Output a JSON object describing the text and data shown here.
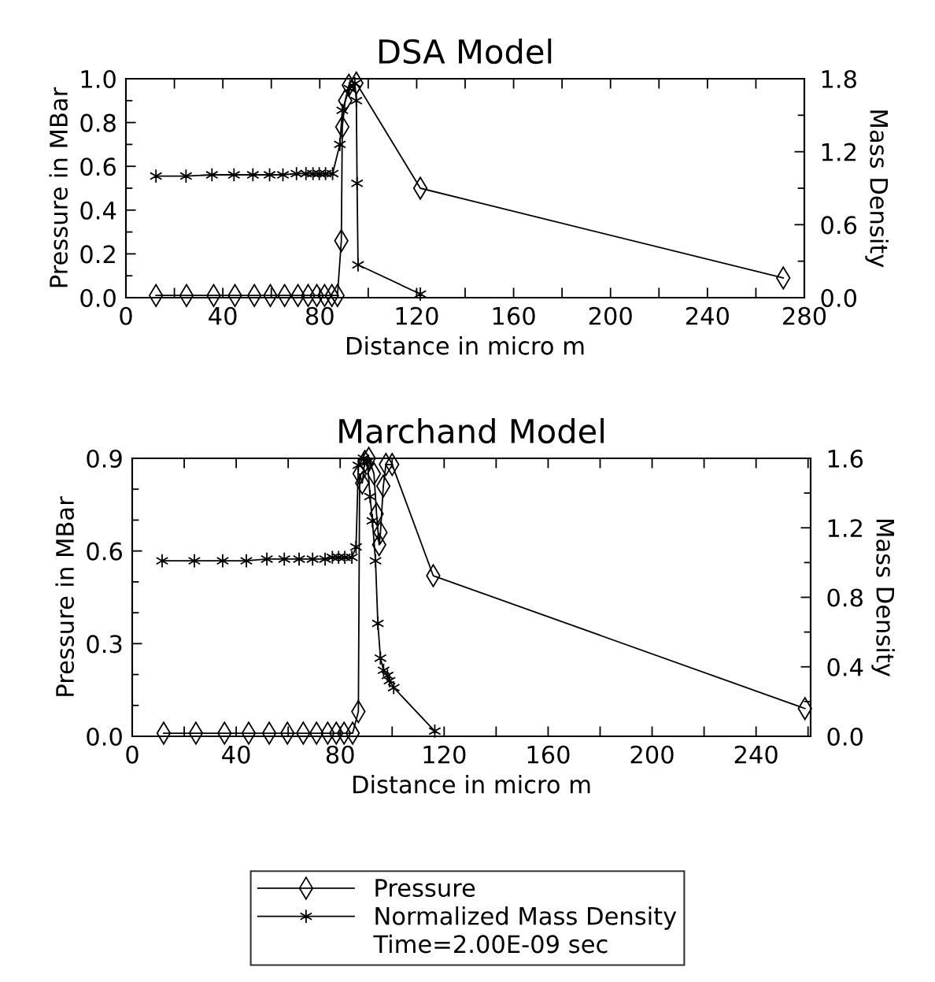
{
  "chart_data": [
    {
      "type": "line",
      "title": "DSA Model",
      "xlabel": "Distance in micro m",
      "ylabel": "Pressure in MBar",
      "y2label": "Mass Density",
      "xlim": [
        0,
        280
      ],
      "xticks": [
        0,
        {
          "value": 20,
          "label": null
        },
        40,
        {
          "value": 60,
          "label": null
        },
        80,
        {
          "value": 100,
          "label": null
        },
        120,
        {
          "value": 140,
          "label": null
        },
        160,
        {
          "value": 180,
          "label": null
        },
        200,
        {
          "value": 220,
          "label": null
        },
        240,
        {
          "value": 260,
          "label": null
        },
        280
      ],
      "ylim": [
        0,
        1.0
      ],
      "yticks": [
        {
          "value": 0,
          "label": "0.0"
        },
        {
          "value": 0.1,
          "label": null
        },
        {
          "value": 0.2,
          "label": "0.2"
        },
        {
          "value": 0.3,
          "label": null
        },
        {
          "value": 0.4,
          "label": "0.4"
        },
        {
          "value": 0.5,
          "label": null
        },
        {
          "value": 0.6,
          "label": "0.6"
        },
        {
          "value": 0.7,
          "label": null
        },
        {
          "value": 0.8,
          "label": "0.8"
        },
        {
          "value": 0.9,
          "label": null
        },
        {
          "value": 1.0,
          "label": "1.0"
        }
      ],
      "y2lim": [
        0,
        1.8
      ],
      "y2ticks": [
        {
          "value": 0,
          "label": "0.0"
        },
        {
          "value": 0.3,
          "label": null
        },
        {
          "value": 0.6,
          "label": "0.6"
        },
        {
          "value": 0.9,
          "label": null
        },
        {
          "value": 1.2,
          "label": "1.2"
        },
        {
          "value": 1.5,
          "label": null
        },
        {
          "value": 1.8,
          "label": "1.8"
        }
      ],
      "grid": false,
      "legend": "bottom",
      "line_style": "solid",
      "series": [
        {
          "name": "Pressure",
          "color": "#000000",
          "marker": "diamond",
          "x": [
            12.4,
            25,
            36.2,
            45,
            53,
            59.6,
            65.5,
            71,
            75.2,
            78.8,
            82,
            85,
            87.3,
            88.9,
            89.3,
            90.5,
            92,
            95.1,
            121.5,
            271.3
          ],
          "values": [
            0.01,
            0.01,
            0.01,
            0.01,
            0.01,
            0.01,
            0.01,
            0.01,
            0.01,
            0.01,
            0.01,
            0.01,
            0.01,
            0.26,
            0.78,
            0.9,
            0.97,
            0.98,
            0.5,
            0.09
          ]
        },
        {
          "name": "Normalized Mass Density",
          "color": "#000000",
          "marker": "cross",
          "axis": "y2",
          "x": [
            12.4,
            24.8,
            35.5,
            44.6,
            52.4,
            59.3,
            64.8,
            70.4,
            74.3,
            77.2,
            79.8,
            82.4,
            85.3,
            88.3,
            89.3,
            92.2,
            94.5,
            95.1,
            95.4,
            95.8,
            121.5
          ],
          "values": [
            1.0,
            1.0,
            1.01,
            1.01,
            1.01,
            1.01,
            1.01,
            1.02,
            1.02,
            1.02,
            1.02,
            1.02,
            1.02,
            1.26,
            1.54,
            1.72,
            1.76,
            1.62,
            0.94,
            0.27,
            0.03
          ]
        }
      ]
    },
    {
      "type": "line",
      "title": "Marchand Model",
      "xlabel": "Distance in micro m",
      "ylabel": "Pressure in MBar",
      "y2label": "Mass Density",
      "xlim": [
        0,
        261
      ],
      "xticks": [
        0,
        {
          "value": 20,
          "label": null
        },
        40,
        {
          "value": 60,
          "label": null
        },
        80,
        {
          "value": 100,
          "label": null
        },
        120,
        {
          "value": 140,
          "label": null
        },
        160,
        {
          "value": 180,
          "label": null
        },
        200,
        {
          "value": 220,
          "label": null
        },
        240,
        {
          "value": 260,
          "label": null
        }
      ],
      "ylim": [
        0,
        0.9
      ],
      "yticks": [
        {
          "value": 0,
          "label": "0.0"
        },
        {
          "value": 0.1,
          "label": null
        },
        {
          "value": 0.2,
          "label": null
        },
        {
          "value": 0.3,
          "label": "0.3"
        },
        {
          "value": 0.4,
          "label": null
        },
        {
          "value": 0.5,
          "label": null
        },
        {
          "value": 0.6,
          "label": "0.6"
        },
        {
          "value": 0.7,
          "label": null
        },
        {
          "value": 0.8,
          "label": null
        },
        {
          "value": 0.9,
          "label": "0.9"
        }
      ],
      "y2lim": [
        0,
        1.6
      ],
      "y2ticks": [
        {
          "value": 0,
          "label": "0.0"
        },
        {
          "value": 0.2,
          "label": null
        },
        {
          "value": 0.4,
          "label": "0.4"
        },
        {
          "value": 0.6,
          "label": null
        },
        {
          "value": 0.8,
          "label": "0.8"
        },
        {
          "value": 1.0,
          "label": null
        },
        {
          "value": 1.2,
          "label": "1.2"
        },
        {
          "value": 1.4,
          "label": null
        },
        {
          "value": 1.6,
          "label": "1.6"
        }
      ],
      "grid": false,
      "legend": "bottom",
      "line_style": "solid",
      "annotations": [
        "Time=2.00E-09 sec"
      ],
      "series": [
        {
          "name": "Pressure",
          "color": "#000000",
          "marker": "diamond",
          "x": [
            12.1,
            24.5,
            35.5,
            44.8,
            52.7,
            59.7,
            65.8,
            70.9,
            75.2,
            78.5,
            81.5,
            84.8,
            87,
            87.5,
            88.5,
            89.5,
            91,
            93,
            94,
            95,
            95.5,
            96.6,
            97.6,
            100,
            115.8,
            258.8
          ],
          "values": [
            0.01,
            0.01,
            0.01,
            0.01,
            0.01,
            0.01,
            0.01,
            0.01,
            0.01,
            0.01,
            0.01,
            0.01,
            0.08,
            0.85,
            0.82,
            0.89,
            0.9,
            0.85,
            0.72,
            0.62,
            0.66,
            0.81,
            0.88,
            0.88,
            0.52,
            0.09
          ]
        },
        {
          "name": "Normalized Mass Density",
          "color": "#000000",
          "marker": "cross",
          "axis": "y2",
          "x": [
            11.5,
            23.9,
            34.8,
            43.9,
            51.8,
            58.5,
            64.2,
            69.4,
            74.2,
            77,
            79.4,
            81.8,
            84.5,
            86.1,
            87,
            89,
            90.5,
            91.5,
            92.4,
            93.6,
            94.5,
            95.5,
            96.7,
            98.2,
            99,
            100.6,
            116.4
          ],
          "values": [
            1.01,
            1.01,
            1.01,
            1.01,
            1.02,
            1.02,
            1.02,
            1.02,
            1.02,
            1.03,
            1.03,
            1.03,
            1.03,
            1.09,
            1.56,
            1.6,
            1.58,
            1.38,
            1.24,
            1.01,
            0.65,
            0.45,
            0.38,
            0.35,
            0.32,
            0.28,
            0.03
          ]
        }
      ]
    }
  ]
}
